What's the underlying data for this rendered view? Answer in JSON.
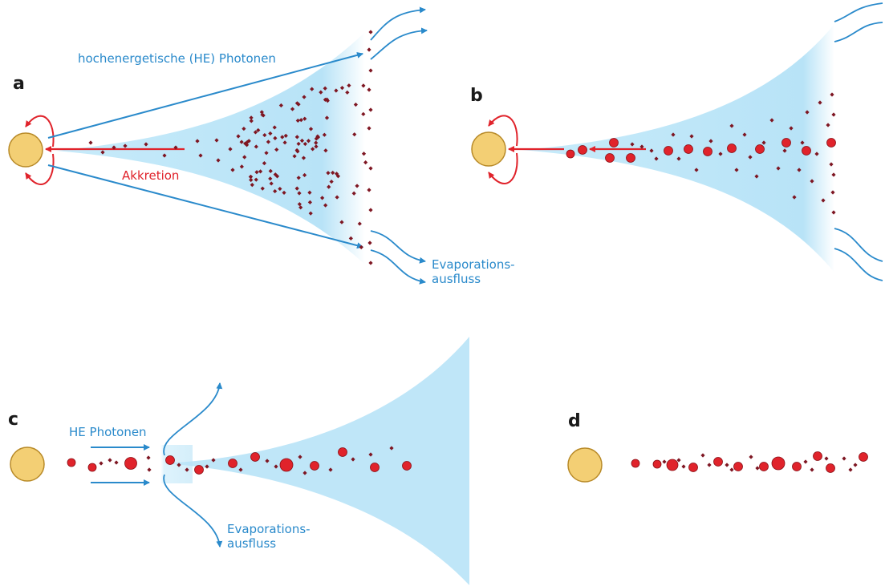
{
  "colors": {
    "disk": "#bfe6f8",
    "disk_edge": "#ffffff",
    "star_fill": "#f3cf74",
    "star_edge": "#b88a28",
    "blue_arrow": "#2a8acb",
    "red_arrow": "#e0232b",
    "small_dust": "#7e1622",
    "pebble": "#e0232b",
    "pebble_edge": "#8a0f16"
  },
  "icons": {
    "star": "star-circle",
    "arrow": "arrow-icon",
    "dust": "diamond-dot-icon",
    "pebble": "red-circle-icon"
  },
  "panels": {
    "a": {
      "letter": "a",
      "photon_label": "hochenergetische (HE) Photonen",
      "accretion_label": "Akkretion",
      "outflow_label_1": "Evaporations-",
      "outflow_label_2": "ausfluss"
    },
    "b": {
      "letter": "b"
    },
    "c": {
      "letter": "c",
      "photon_label": "HE Photonen",
      "outflow_label_1": "Evaporations-",
      "outflow_label_2": "ausfluss"
    },
    "d": {
      "letter": "d"
    }
  }
}
